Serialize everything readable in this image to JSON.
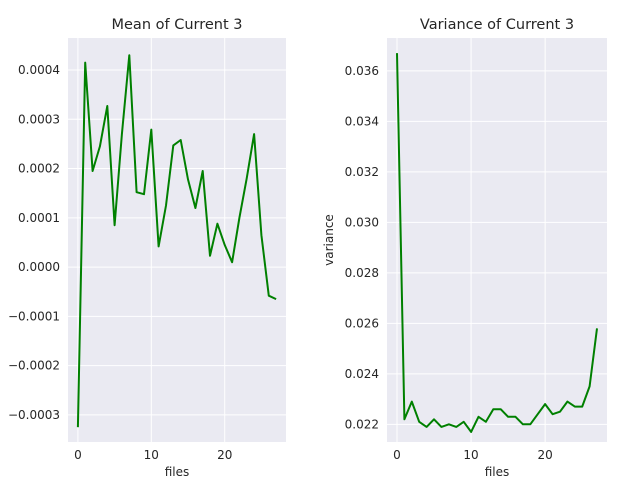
{
  "chart_data": [
    {
      "type": "line",
      "title": "Mean of Current 3",
      "xlabel": "files",
      "ylabel": "",
      "color": "#008000",
      "xlim": [
        -1.35,
        28.35
      ],
      "ylim": [
        -0.000355,
        0.000465
      ],
      "xticks": [
        0,
        10,
        20
      ],
      "xtick_labels": [
        "0",
        "10",
        "20"
      ],
      "yticks": [
        -0.0003,
        -0.0002,
        -0.0001,
        0.0,
        0.0001,
        0.0002,
        0.0003,
        0.0004
      ],
      "ytick_labels": [
        "−0.0003",
        "−0.0002",
        "−0.0001",
        "0.0000",
        "0.0001",
        "0.0002",
        "0.0003",
        "0.0004"
      ],
      "grid": true,
      "series": [
        {
          "x": [
            0,
            1,
            2,
            3,
            4,
            5,
            6,
            7,
            8,
            9,
            10,
            11,
            12,
            13,
            14,
            15,
            16,
            17,
            18,
            19,
            20,
            21,
            22,
            23,
            24,
            25,
            26,
            27
          ],
          "values": [
            -0.000325,
            0.000415,
            0.000195,
            0.000245,
            0.000327,
            8.5e-05,
            0.00027,
            0.00043,
            0.000152,
            0.000148,
            0.000279,
            4.2e-05,
            0.000125,
            0.000247,
            0.000258,
            0.000178,
            0.00012,
            0.000195,
            2.3e-05,
            8.8e-05,
            4.5e-05,
            1e-05,
            0.0001,
            0.00018,
            0.00027,
            6.5e-05,
            -5.8e-05,
            -6.5e-05
          ]
        }
      ]
    },
    {
      "type": "line",
      "title": "Variance of Current 3",
      "xlabel": "files",
      "ylabel": "variance",
      "color": "#008000",
      "xlim": [
        -1.35,
        28.35
      ],
      "ylim": [
        0.0213,
        0.0373
      ],
      "xticks": [
        0,
        10,
        20
      ],
      "xtick_labels": [
        "0",
        "10",
        "20"
      ],
      "yticks": [
        0.022,
        0.024,
        0.026,
        0.028,
        0.03,
        0.032,
        0.034,
        0.036
      ],
      "ytick_labels": [
        "0.022",
        "0.024",
        "0.026",
        "0.028",
        "0.030",
        "0.032",
        "0.034",
        "0.036"
      ],
      "grid": true,
      "series": [
        {
          "x": [
            0,
            1,
            2,
            3,
            4,
            5,
            6,
            7,
            8,
            9,
            10,
            11,
            12,
            13,
            14,
            15,
            16,
            17,
            18,
            19,
            20,
            21,
            22,
            23,
            24,
            25,
            26,
            27
          ],
          "values": [
            0.0367,
            0.0222,
            0.0229,
            0.0221,
            0.0219,
            0.0222,
            0.0219,
            0.022,
            0.0219,
            0.0221,
            0.0217,
            0.0223,
            0.0221,
            0.0226,
            0.0226,
            0.0223,
            0.0223,
            0.022,
            0.022,
            0.0224,
            0.0228,
            0.0224,
            0.0225,
            0.0229,
            0.0227,
            0.0227,
            0.0235,
            0.0258
          ]
        }
      ]
    }
  ]
}
